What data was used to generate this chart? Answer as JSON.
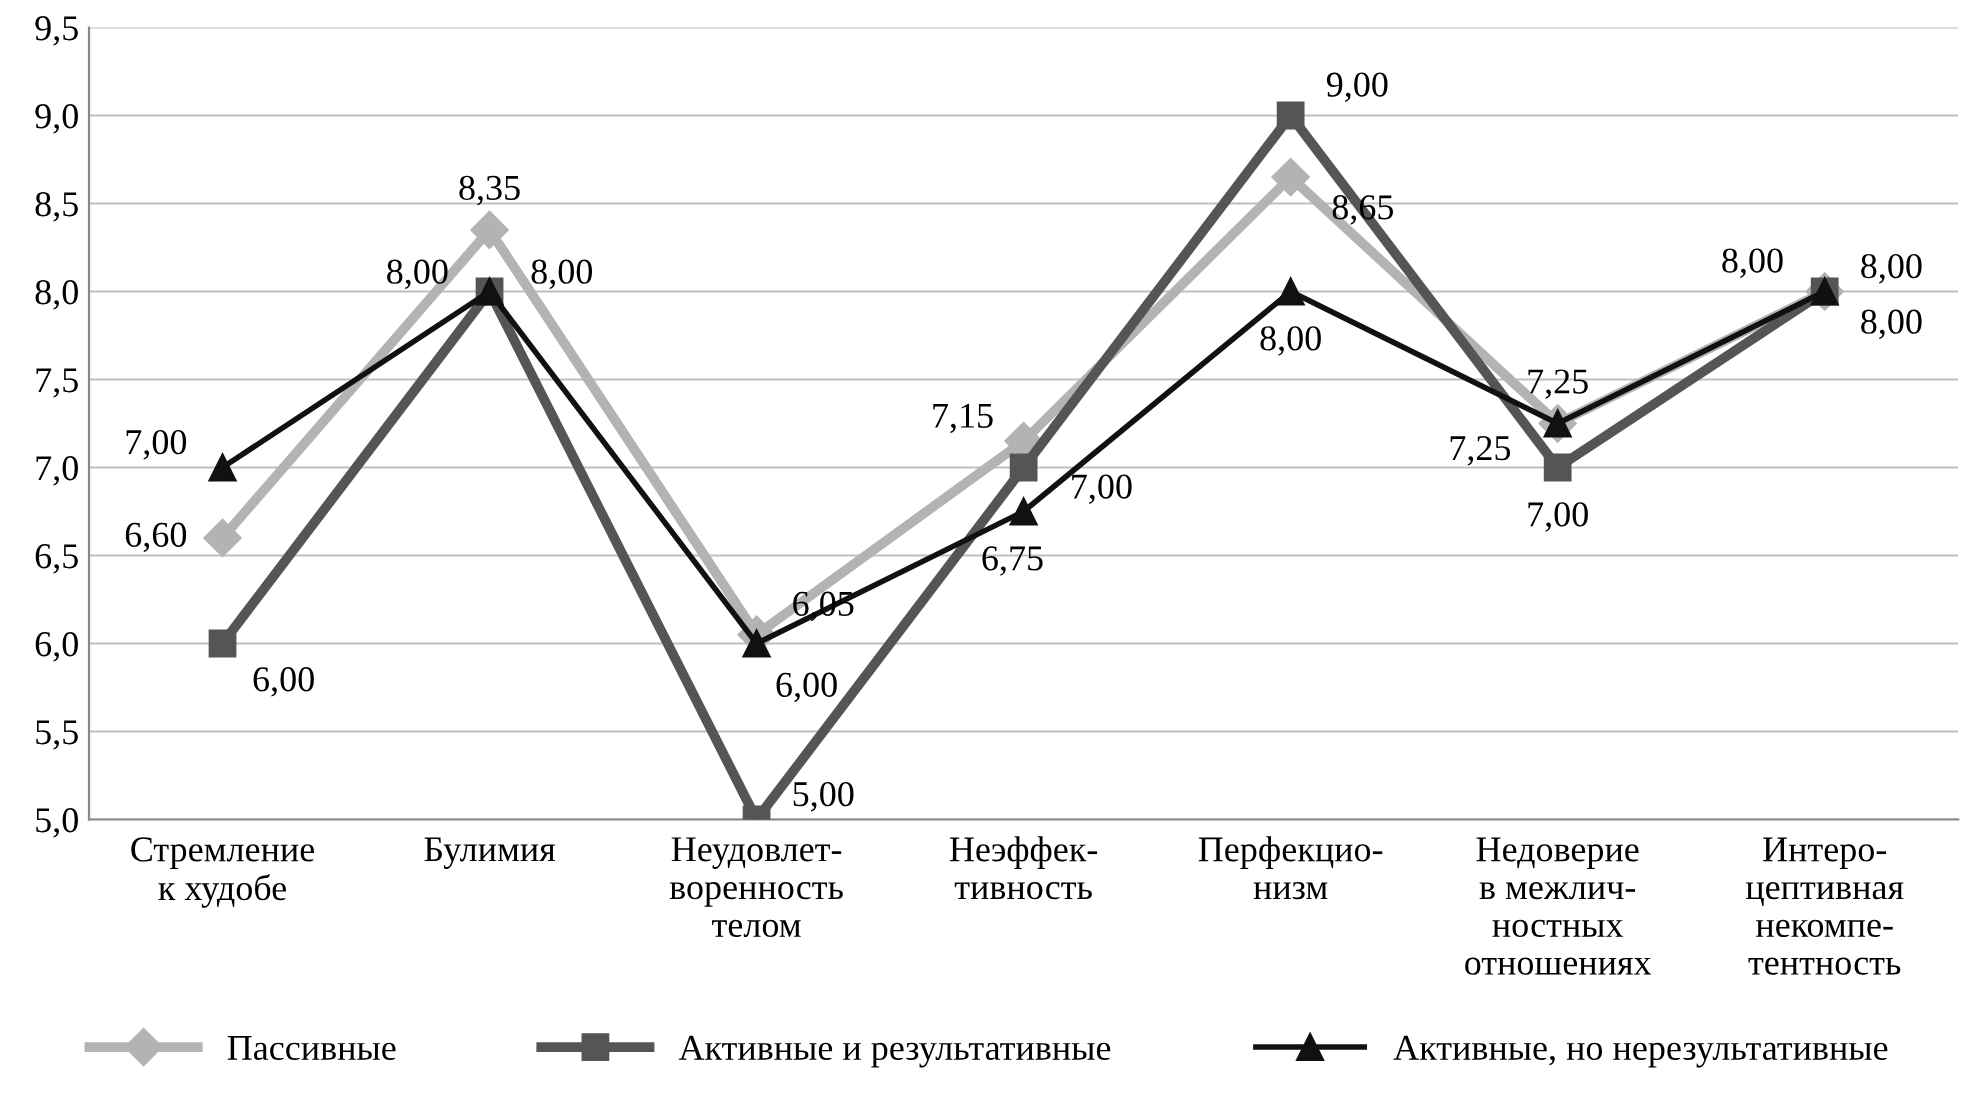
{
  "chart_data": {
    "type": "line",
    "categories": [
      "Стремление\nк худобе",
      "Булимия",
      "Неудовлет-\nворенность\nтелом",
      "Неэффек-\nтивность",
      "Перфекцио-\nнизм",
      "Недоверие\nв межлич-\nностных\nотношениях",
      "Интеро-\nцептивная\nнекомпе-\nтентность"
    ],
    "series": [
      {
        "name": "Пассивные",
        "color": "#b3b3b3",
        "marker": "diamond",
        "values": [
          6.6,
          8.35,
          6.05,
          7.15,
          8.65,
          7.25,
          8.0
        ],
        "value_labels": [
          "6,60",
          "8,35",
          "6,05",
          "7,15",
          "8,65",
          "7,25",
          "8,00"
        ]
      },
      {
        "name": "Активные и результативные",
        "color": "#555555",
        "marker": "square",
        "values": [
          6.0,
          8.0,
          5.0,
          7.0,
          9.0,
          7.0,
          8.0
        ],
        "value_labels": [
          "6,00",
          "8,00",
          "5,00",
          "7,00",
          "9,00",
          "7,00",
          "8,00"
        ]
      },
      {
        "name": "Активные, но нерезультативные",
        "color": "#111111",
        "marker": "triangle",
        "values": [
          7.0,
          8.0,
          6.0,
          6.75,
          8.0,
          7.25,
          8.0
        ],
        "value_labels": [
          "7,00",
          "8,00",
          "6,00",
          "6,75",
          "8,00",
          "7,25",
          "8,00"
        ]
      }
    ],
    "ylim": [
      5.0,
      9.5
    ],
    "yticks": [
      {
        "value": 5.0,
        "label": "5,0"
      },
      {
        "value": 5.5,
        "label": "5,5"
      },
      {
        "value": 6.0,
        "label": "6,0"
      },
      {
        "value": 6.5,
        "label": "6,5"
      },
      {
        "value": 7.0,
        "label": "7,0"
      },
      {
        "value": 7.5,
        "label": "7,5"
      },
      {
        "value": 8.0,
        "label": "8,0"
      },
      {
        "value": 8.5,
        "label": "8,5"
      },
      {
        "value": 9.0,
        "label": "9,0"
      },
      {
        "value": 9.5,
        "label": "9,5"
      }
    ],
    "grid": "y",
    "legend": "bottom",
    "line_style": "solid"
  }
}
